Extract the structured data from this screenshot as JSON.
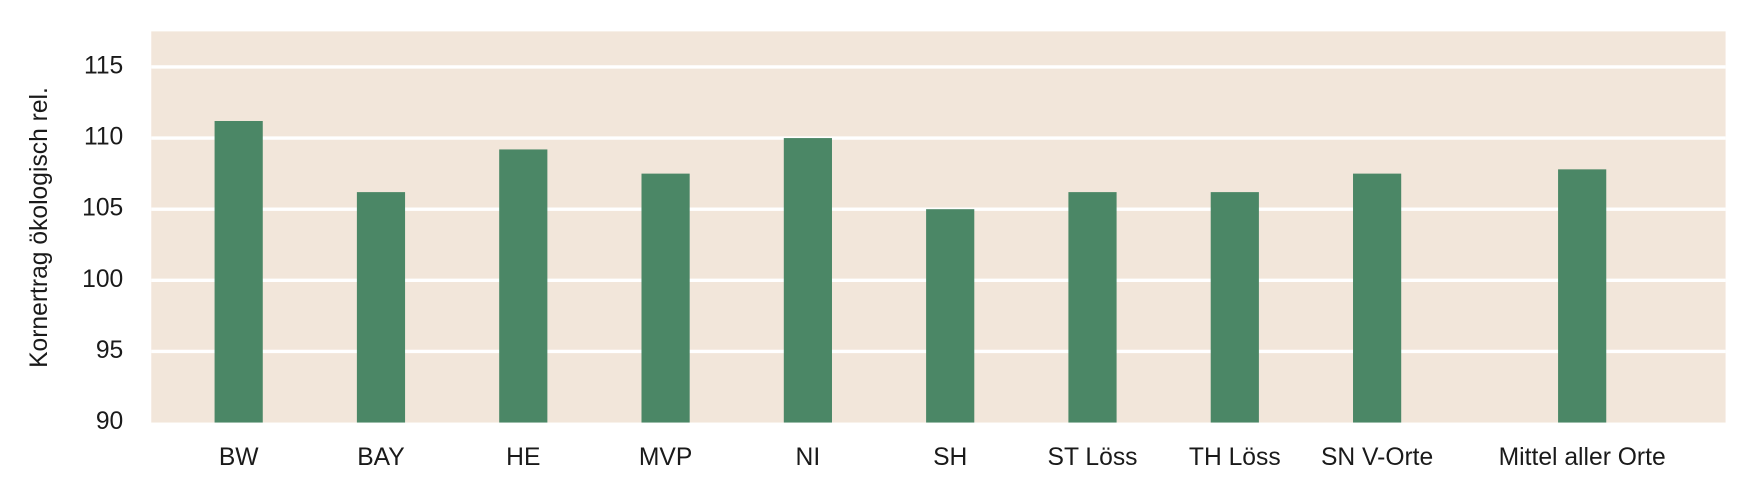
{
  "chart_data": {
    "type": "bar",
    "y_label": "Kornertrag ökologisch rel.",
    "categories": [
      "BW",
      "BAY",
      "HE",
      "MVP",
      "NI",
      "SH",
      "ST Löss",
      "TH Löss",
      "SN V-Orte",
      "Mittel aller Orte"
    ],
    "values": [
      111.2,
      106.2,
      109.2,
      107.5,
      110,
      105,
      106.2,
      106.2,
      107.5,
      107.8
    ],
    "color": "#4b8766",
    "background": "#f2e6da",
    "ylim": [
      90,
      117.5
    ],
    "yticks": [
      90,
      95,
      100,
      105,
      110,
      115
    ],
    "grid": true
  }
}
